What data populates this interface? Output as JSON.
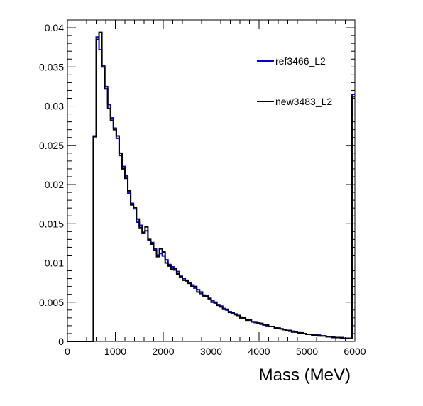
{
  "chart_data": {
    "type": "histogram",
    "title": "",
    "xlabel": "Mass (MeV)",
    "ylabel": "",
    "xlim": [
      0,
      6000
    ],
    "ylim": [
      0,
      0.041
    ],
    "grid": false,
    "legend_placement": "top-right",
    "x_ticks": [
      0,
      1000,
      2000,
      3000,
      4000,
      5000,
      6000
    ],
    "x_tick_labels": [
      "0",
      "1000",
      "2000",
      "3000",
      "4000",
      "5000",
      "6000"
    ],
    "y_ticks": [
      0,
      0.005,
      0.01,
      0.015,
      0.02,
      0.025,
      0.03,
      0.035,
      0.04
    ],
    "y_tick_labels": [
      "0",
      "0.005",
      "0.01",
      "0.015",
      "0.02",
      "0.025",
      "0.03",
      "0.035",
      "0.04"
    ],
    "bin_width": 60,
    "bin_start": 0,
    "series": [
      {
        "name": "ref3466_L2",
        "color": "#0000cc",
        "values": [
          0,
          0,
          0,
          0,
          0,
          0,
          0,
          0,
          0,
          0.0262,
          0.0388,
          0.0372,
          0.0352,
          0.0325,
          0.0302,
          0.0285,
          0.0272,
          0.0259,
          0.0237,
          0.0223,
          0.0211,
          0.0189,
          0.0176,
          0.0169,
          0.0152,
          0.0148,
          0.0138,
          0.0141,
          0.0129,
          0.0126,
          0.0118,
          0.011,
          0.0112,
          0.0109,
          0.0104,
          0.0098,
          0.0095,
          0.0091,
          0.0089,
          0.0082,
          0.008,
          0.0077,
          0.0075,
          0.0072,
          0.0068,
          0.0066,
          0.0061,
          0.0059,
          0.0058,
          0.0054,
          0.0052,
          0.0049,
          0.0047,
          0.0045,
          0.0042,
          0.004,
          0.0038,
          0.0036,
          0.0035,
          0.0033,
          0.0031,
          0.0029,
          0.0028,
          0.0027,
          0.0025,
          0.0024,
          0.0024,
          0.0022,
          0.0021,
          0.002,
          0.0019,
          0.0019,
          0.0018,
          0.0017,
          0.0016,
          0.0015,
          0.0014,
          0.0013,
          0.0013,
          0.0012,
          0.0011,
          0.001,
          0.001,
          0.0009,
          0.0009,
          0.0008,
          0.0008,
          0.0008,
          0.0007,
          0.0007,
          0.0006,
          0.0006,
          0.0006,
          0.0005,
          0.0005,
          0.0005,
          0.0004,
          0.0004,
          0.0004,
          0.0315
        ]
      },
      {
        "name": "new3483_L2",
        "color": "#000000",
        "values": [
          0,
          0,
          0,
          0,
          0,
          0,
          0,
          0,
          0,
          0.0261,
          0.0385,
          0.0394,
          0.035,
          0.0322,
          0.0297,
          0.0282,
          0.027,
          0.0262,
          0.024,
          0.022,
          0.0208,
          0.0192,
          0.0174,
          0.0171,
          0.0156,
          0.0145,
          0.0139,
          0.0146,
          0.013,
          0.0124,
          0.0116,
          0.0108,
          0.0118,
          0.0114,
          0.01,
          0.0096,
          0.0092,
          0.0093,
          0.0086,
          0.0083,
          0.0078,
          0.0078,
          0.0074,
          0.007,
          0.007,
          0.0063,
          0.0063,
          0.0058,
          0.0057,
          0.0055,
          0.005,
          0.005,
          0.0046,
          0.0044,
          0.0041,
          0.0041,
          0.0037,
          0.0037,
          0.0034,
          0.0033,
          0.003,
          0.003,
          0.0027,
          0.0028,
          0.0025,
          0.0025,
          0.0023,
          0.0023,
          0.0021,
          0.0021,
          0.0019,
          0.0019,
          0.0017,
          0.0017,
          0.0016,
          0.0015,
          0.0014,
          0.0014,
          0.0012,
          0.0012,
          0.0011,
          0.0011,
          0.001,
          0.0009,
          0.0009,
          0.0008,
          0.0008,
          0.0007,
          0.0007,
          0.0007,
          0.0006,
          0.0006,
          0.0005,
          0.0005,
          0.0005,
          0.0004,
          0.0004,
          0.0004,
          0.0004,
          0.0312
        ]
      }
    ]
  }
}
